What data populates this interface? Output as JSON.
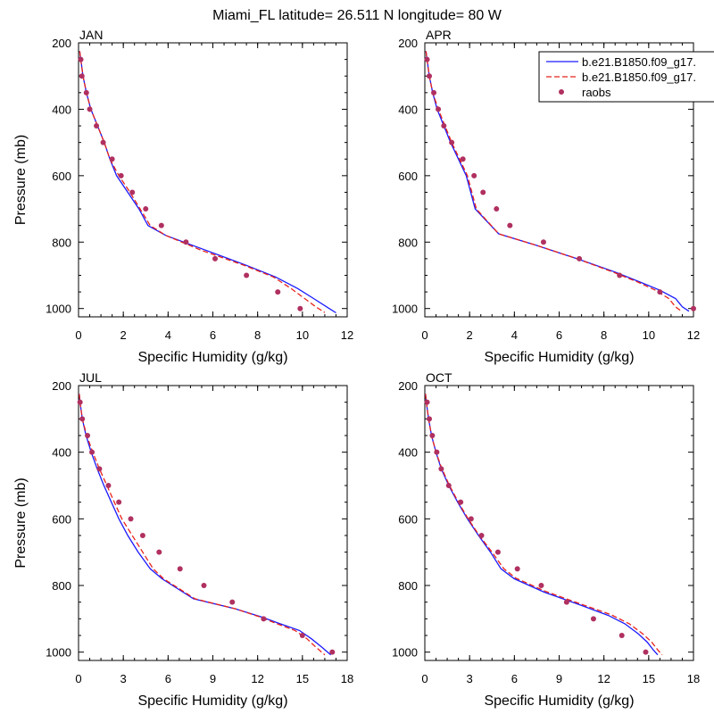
{
  "figure": {
    "title": "Miami_FL  latitude= 26.511 N longitude= 80 W"
  },
  "legend": {
    "placement": "top-right (in APR panel, clipped at right edge)",
    "entries": [
      {
        "label": "b.e21.B1850.f09_g17.",
        "style": "solid",
        "color": "#1a1aff"
      },
      {
        "label": "b.e21.B1850.f09_g17.",
        "style": "dashed",
        "color": "#e8231a"
      },
      {
        "label": "raobs",
        "style": "marker",
        "color": "#b03060"
      }
    ]
  },
  "chart_data": [
    {
      "type": "line",
      "panel": "JAN",
      "title": "JAN",
      "xlabel": "Specific Humidity (g/kg)",
      "ylabel": "Pressure (mb)",
      "xlim": [
        0,
        12
      ],
      "ylim": [
        1025,
        200
      ],
      "y_reversed": true,
      "xticks": [
        "0",
        "2",
        "4",
        "6",
        "8",
        "10",
        "12"
      ],
      "yticks": [
        "200",
        "400",
        "600",
        "800",
        "1000"
      ],
      "series": [
        {
          "color": "#1a1aff",
          "dash": "solid",
          "points": [
            [
              0.05,
              225
            ],
            [
              0.1,
              250
            ],
            [
              0.2,
              300
            ],
            [
              0.35,
              350
            ],
            [
              0.55,
              400
            ],
            [
              0.85,
              450
            ],
            [
              1.15,
              500
            ],
            [
              1.4,
              550
            ],
            [
              1.7,
              600
            ],
            [
              2.2,
              650
            ],
            [
              2.7,
              700
            ],
            [
              3.1,
              750
            ],
            [
              3.9,
              780
            ],
            [
              5.5,
              820
            ],
            [
              7.5,
              870
            ],
            [
              8.8,
              905
            ],
            [
              9.8,
              940
            ],
            [
              10.5,
              970
            ],
            [
              11.2,
              1000
            ],
            [
              11.5,
              1013
            ]
          ]
        },
        {
          "color": "#e8231a",
          "dash": "dashed",
          "points": [
            [
              0.05,
              225
            ],
            [
              0.1,
              250
            ],
            [
              0.2,
              300
            ],
            [
              0.35,
              350
            ],
            [
              0.55,
              400
            ],
            [
              0.85,
              450
            ],
            [
              1.15,
              500
            ],
            [
              1.4,
              550
            ],
            [
              1.8,
              600
            ],
            [
              2.3,
              650
            ],
            [
              2.75,
              700
            ],
            [
              3.2,
              750
            ],
            [
              3.9,
              780
            ],
            [
              5.5,
              825
            ],
            [
              7.4,
              870
            ],
            [
              8.7,
              905
            ],
            [
              9.5,
              940
            ],
            [
              10.2,
              975
            ],
            [
              10.6,
              995
            ],
            [
              11.0,
              1012
            ]
          ]
        }
      ],
      "raobs": [
        [
          0.1,
          250
        ],
        [
          0.15,
          300
        ],
        [
          0.35,
          350
        ],
        [
          0.5,
          400
        ],
        [
          0.8,
          450
        ],
        [
          1.1,
          500
        ],
        [
          1.5,
          550
        ],
        [
          1.9,
          600
        ],
        [
          2.4,
          650
        ],
        [
          3.0,
          700
        ],
        [
          3.7,
          750
        ],
        [
          4.8,
          800
        ],
        [
          6.1,
          850
        ],
        [
          7.5,
          900
        ],
        [
          8.9,
          950
        ],
        [
          9.9,
          1000
        ]
      ]
    },
    {
      "type": "line",
      "panel": "APR",
      "title": "APR",
      "xlabel": "Specific Humidity (g/kg)",
      "ylabel": "",
      "xlim": [
        0,
        12
      ],
      "ylim": [
        1025,
        200
      ],
      "y_reversed": true,
      "xticks": [
        "0",
        "2",
        "4",
        "6",
        "8",
        "10",
        "12"
      ],
      "yticks": [
        "200",
        "400",
        "600",
        "800",
        "1000"
      ],
      "series": [
        {
          "color": "#1a1aff",
          "dash": "solid",
          "points": [
            [
              0.05,
              225
            ],
            [
              0.1,
              250
            ],
            [
              0.2,
              300
            ],
            [
              0.35,
              350
            ],
            [
              0.55,
              400
            ],
            [
              0.85,
              450
            ],
            [
              1.15,
              500
            ],
            [
              1.5,
              550
            ],
            [
              1.85,
              600
            ],
            [
              2.25,
              700
            ],
            [
              3.3,
              775
            ],
            [
              5.0,
              810
            ],
            [
              6.8,
              850
            ],
            [
              8.5,
              890
            ],
            [
              9.6,
              920
            ],
            [
              10.5,
              945
            ],
            [
              11.2,
              970
            ],
            [
              11.5,
              995
            ],
            [
              11.8,
              1008
            ]
          ]
        },
        {
          "color": "#e8231a",
          "dash": "dashed",
          "points": [
            [
              0.05,
              225
            ],
            [
              0.1,
              250
            ],
            [
              0.2,
              300
            ],
            [
              0.35,
              350
            ],
            [
              0.6,
              400
            ],
            [
              0.9,
              450
            ],
            [
              1.2,
              500
            ],
            [
              1.55,
              550
            ],
            [
              1.9,
              600
            ],
            [
              2.3,
              700
            ],
            [
              3.3,
              775
            ],
            [
              5.0,
              810
            ],
            [
              6.8,
              850
            ],
            [
              8.4,
              890
            ],
            [
              9.5,
              920
            ],
            [
              10.3,
              945
            ],
            [
              10.9,
              970
            ],
            [
              11.2,
              995
            ],
            [
              11.5,
              1010
            ]
          ]
        }
      ],
      "raobs": [
        [
          0.1,
          250
        ],
        [
          0.2,
          300
        ],
        [
          0.4,
          350
        ],
        [
          0.6,
          400
        ],
        [
          0.85,
          450
        ],
        [
          1.2,
          500
        ],
        [
          1.7,
          550
        ],
        [
          2.2,
          600
        ],
        [
          2.6,
          650
        ],
        [
          3.2,
          700
        ],
        [
          3.8,
          750
        ],
        [
          5.3,
          800
        ],
        [
          6.9,
          850
        ],
        [
          8.7,
          900
        ],
        [
          10.5,
          950
        ],
        [
          12.0,
          1000
        ]
      ]
    },
    {
      "type": "line",
      "panel": "JUL",
      "title": "JUL",
      "xlabel": "Specific Humidity (g/kg)",
      "ylabel": "Pressure (mb)",
      "xlim": [
        0,
        18
      ],
      "ylim": [
        1025,
        200
      ],
      "y_reversed": true,
      "xticks": [
        "0",
        "3",
        "6",
        "9",
        "12",
        "15",
        "18"
      ],
      "yticks": [
        "200",
        "400",
        "600",
        "800",
        "1000"
      ],
      "series": [
        {
          "color": "#1a1aff",
          "dash": "solid",
          "points": [
            [
              0.05,
              225
            ],
            [
              0.1,
              250
            ],
            [
              0.25,
              300
            ],
            [
              0.5,
              350
            ],
            [
              0.85,
              400
            ],
            [
              1.25,
              450
            ],
            [
              1.7,
              500
            ],
            [
              2.2,
              550
            ],
            [
              2.7,
              600
            ],
            [
              3.3,
              650
            ],
            [
              4.0,
              700
            ],
            [
              4.8,
              750
            ],
            [
              5.6,
              780
            ],
            [
              7.7,
              840
            ],
            [
              10.5,
              870
            ],
            [
              12.3,
              895
            ],
            [
              13.5,
              915
            ],
            [
              14.8,
              935
            ],
            [
              15.6,
              960
            ],
            [
              16.3,
              985
            ],
            [
              16.9,
              1008
            ]
          ]
        },
        {
          "color": "#e8231a",
          "dash": "dashed",
          "points": [
            [
              0.05,
              225
            ],
            [
              0.1,
              250
            ],
            [
              0.25,
              300
            ],
            [
              0.55,
              350
            ],
            [
              0.95,
              400
            ],
            [
              1.4,
              450
            ],
            [
              1.9,
              500
            ],
            [
              2.4,
              550
            ],
            [
              2.9,
              600
            ],
            [
              3.6,
              650
            ],
            [
              4.3,
              700
            ],
            [
              5.0,
              750
            ],
            [
              5.7,
              780
            ],
            [
              7.8,
              840
            ],
            [
              10.5,
              870
            ],
            [
              12.2,
              895
            ],
            [
              13.3,
              915
            ],
            [
              14.5,
              935
            ],
            [
              15.3,
              960
            ],
            [
              15.9,
              985
            ],
            [
              16.5,
              1008
            ]
          ]
        }
      ],
      "raobs": [
        [
          0.1,
          250
        ],
        [
          0.25,
          300
        ],
        [
          0.6,
          350
        ],
        [
          0.9,
          400
        ],
        [
          1.4,
          450
        ],
        [
          2.0,
          500
        ],
        [
          2.7,
          550
        ],
        [
          3.5,
          600
        ],
        [
          4.3,
          650
        ],
        [
          5.4,
          700
        ],
        [
          6.8,
          750
        ],
        [
          8.4,
          800
        ],
        [
          10.3,
          850
        ],
        [
          12.4,
          900
        ],
        [
          15.0,
          950
        ],
        [
          17.0,
          1000
        ]
      ]
    },
    {
      "type": "line",
      "panel": "OCT",
      "title": "OCT",
      "xlabel": "Specific Humidity (g/kg)",
      "ylabel": "",
      "xlim": [
        0,
        18
      ],
      "ylim": [
        1025,
        200
      ],
      "y_reversed": true,
      "xticks": [
        "0",
        "3",
        "6",
        "9",
        "12",
        "15",
        "18"
      ],
      "yticks": [
        "200",
        "400",
        "600",
        "800",
        "1000"
      ],
      "series": [
        {
          "color": "#1a1aff",
          "dash": "solid",
          "points": [
            [
              0.05,
              225
            ],
            [
              0.1,
              250
            ],
            [
              0.25,
              300
            ],
            [
              0.45,
              350
            ],
            [
              0.75,
              400
            ],
            [
              1.1,
              450
            ],
            [
              1.6,
              500
            ],
            [
              2.2,
              550
            ],
            [
              2.85,
              600
            ],
            [
              3.6,
              650
            ],
            [
              4.4,
              700
            ],
            [
              5.1,
              750
            ],
            [
              6.0,
              780
            ],
            [
              8.0,
              820
            ],
            [
              10.5,
              860
            ],
            [
              12.3,
              890
            ],
            [
              13.4,
              915
            ],
            [
              14.3,
              945
            ],
            [
              14.9,
              970
            ],
            [
              15.3,
              993
            ],
            [
              15.6,
              1008
            ]
          ]
        },
        {
          "color": "#e8231a",
          "dash": "dashed",
          "points": [
            [
              0.05,
              225
            ],
            [
              0.1,
              250
            ],
            [
              0.25,
              300
            ],
            [
              0.45,
              350
            ],
            [
              0.75,
              400
            ],
            [
              1.15,
              450
            ],
            [
              1.65,
              500
            ],
            [
              2.25,
              550
            ],
            [
              2.9,
              600
            ],
            [
              3.65,
              650
            ],
            [
              4.5,
              700
            ],
            [
              5.3,
              750
            ],
            [
              6.1,
              778
            ],
            [
              8.1,
              818
            ],
            [
              10.6,
              858
            ],
            [
              12.5,
              888
            ],
            [
              13.7,
              915
            ],
            [
              14.6,
              945
            ],
            [
              15.2,
              970
            ],
            [
              15.6,
              993
            ],
            [
              15.9,
              1008
            ]
          ]
        }
      ],
      "raobs": [
        [
          0.15,
          250
        ],
        [
          0.3,
          300
        ],
        [
          0.5,
          350
        ],
        [
          0.8,
          400
        ],
        [
          1.1,
          450
        ],
        [
          1.6,
          500
        ],
        [
          2.4,
          550
        ],
        [
          3.1,
          600
        ],
        [
          3.8,
          650
        ],
        [
          4.9,
          700
        ],
        [
          6.2,
          750
        ],
        [
          7.8,
          800
        ],
        [
          9.5,
          850
        ],
        [
          11.3,
          900
        ],
        [
          13.2,
          950
        ],
        [
          14.8,
          1000
        ]
      ]
    }
  ]
}
